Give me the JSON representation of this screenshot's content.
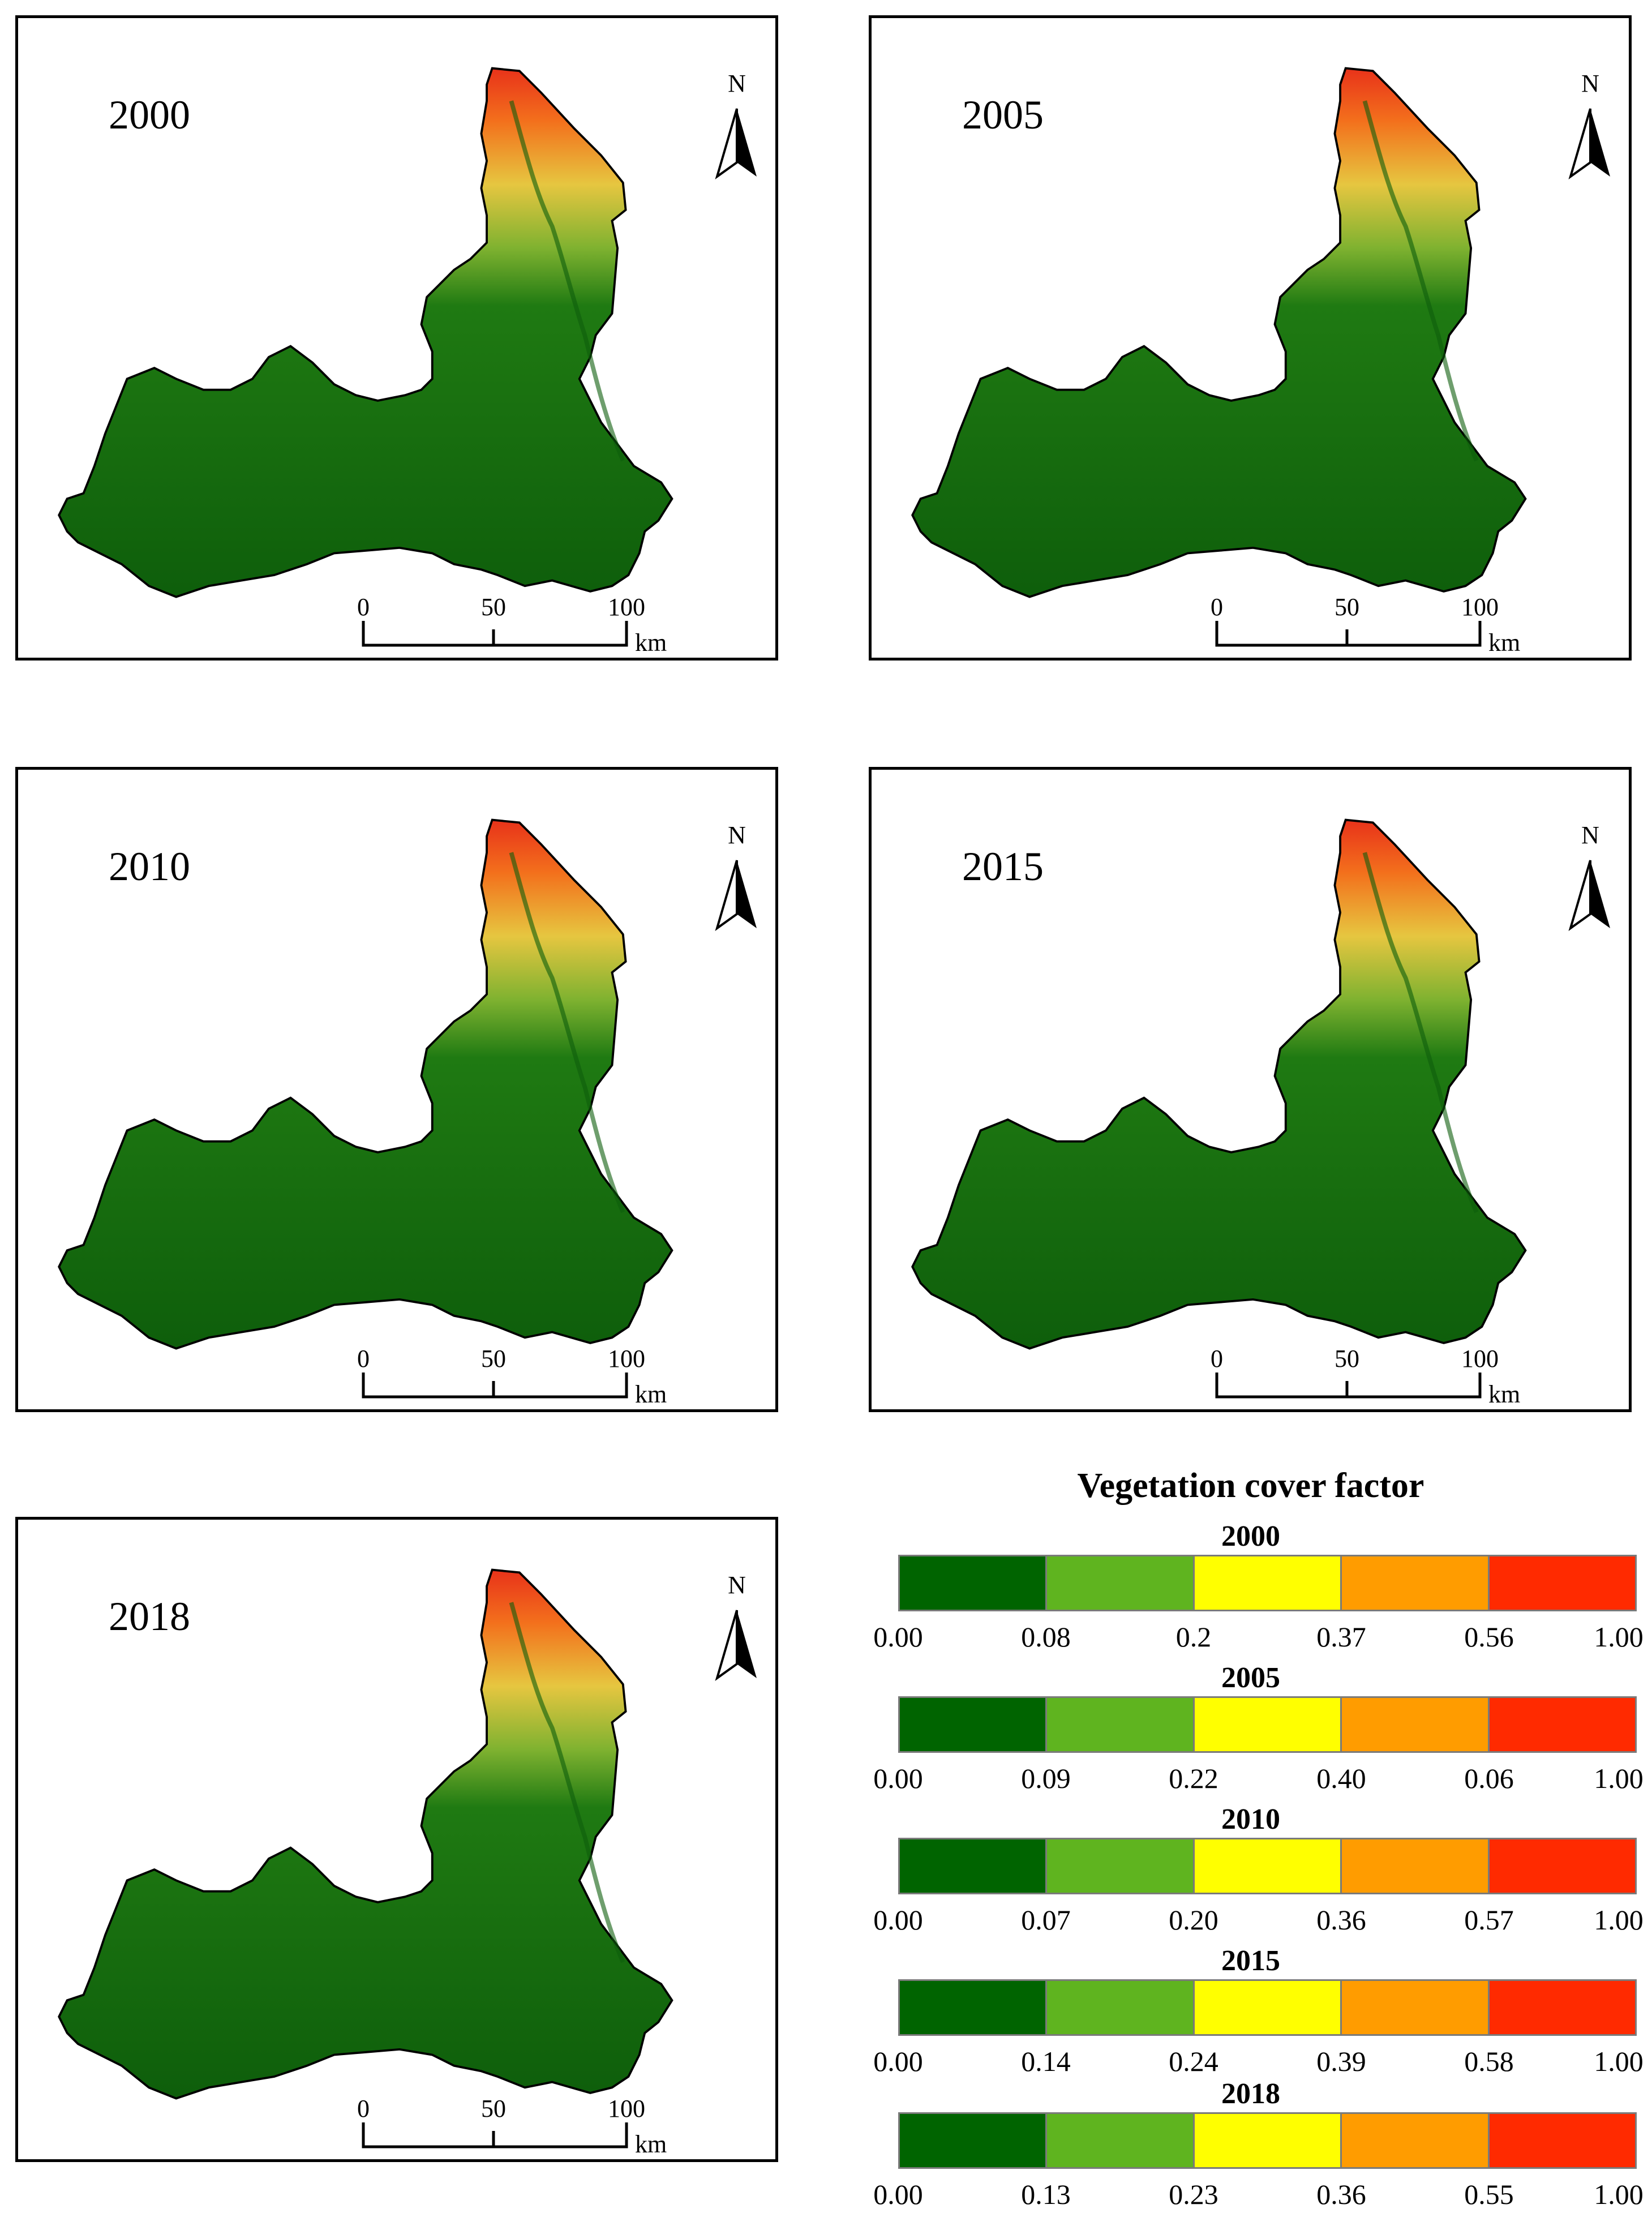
{
  "maps": [
    {
      "year": "2000"
    },
    {
      "year": "2005"
    },
    {
      "year": "2010"
    },
    {
      "year": "2015"
    },
    {
      "year": "2018"
    }
  ],
  "north_label": "N",
  "scale_bar": {
    "ticks": [
      "0",
      "50",
      "100"
    ],
    "unit": "km"
  },
  "legend": {
    "title": "Vegetation cover  factor",
    "colors": [
      "#006400",
      "#5fb41f",
      "#ffff00",
      "#ff9c00",
      "#ff2a00"
    ],
    "scales": [
      {
        "year": "2000",
        "breaks": [
          "0.00",
          "0.08",
          "0.2",
          "0.37",
          "0.56",
          "1.00"
        ]
      },
      {
        "year": "2005",
        "breaks": [
          "0.00",
          "0.09",
          "0.22",
          "0.40",
          "0.06",
          "1.00"
        ]
      },
      {
        "year": "2010",
        "breaks": [
          "0.00",
          "0.07",
          "0.20",
          "0.36",
          "0.57",
          "1.00"
        ]
      },
      {
        "year": "2015",
        "breaks": [
          "0.00",
          "0.14",
          "0.24",
          "0.39",
          "0.58",
          "1.00"
        ]
      },
      {
        "year": "2018",
        "breaks": [
          "0.00",
          "0.13",
          "0.23",
          "0.36",
          "0.55",
          "1.00"
        ]
      }
    ]
  }
}
